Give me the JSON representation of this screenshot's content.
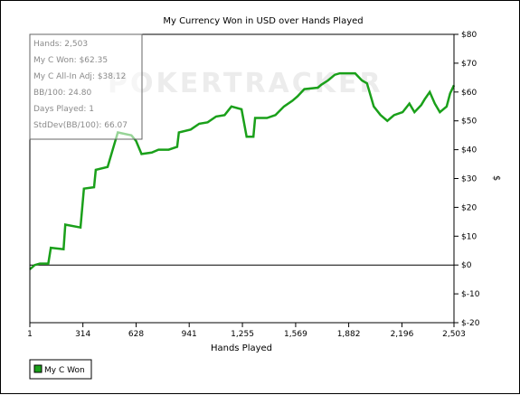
{
  "chart_data": {
    "type": "line",
    "title": "My Currency Won in USD over Hands Played",
    "xlabel": "Hands Played",
    "ylabel": "$",
    "x_ticks": [
      1,
      314,
      628,
      941,
      1255,
      1569,
      1882,
      2196,
      2503
    ],
    "x_tick_labels": [
      "1",
      "314",
      "628",
      "941",
      "1,255",
      "1,569",
      "1,882",
      "2,196",
      "2,503"
    ],
    "xlim": [
      1,
      2503
    ],
    "ylim": [
      -20,
      80
    ],
    "y_ticks": [
      -20,
      -10,
      0,
      10,
      20,
      30,
      40,
      50,
      60,
      70,
      80
    ],
    "y_tick_labels": [
      "$-20",
      "$-10",
      "$0",
      "$10",
      "$20",
      "$30",
      "$40",
      "$50",
      "$60",
      "$70",
      "$80"
    ],
    "grid": false,
    "legend_placement": "bottom-left",
    "watermark": "POKERTRACKER",
    "series": [
      {
        "name": "My C Won",
        "color": "#1aa01a",
        "points": [
          [
            1,
            -1.5
          ],
          [
            30,
            0
          ],
          [
            60,
            0.5
          ],
          [
            110,
            0.5
          ],
          [
            125,
            6
          ],
          [
            200,
            5.5
          ],
          [
            210,
            14
          ],
          [
            300,
            13
          ],
          [
            320,
            26.5
          ],
          [
            380,
            27
          ],
          [
            390,
            33
          ],
          [
            460,
            34
          ],
          [
            500,
            42
          ],
          [
            520,
            46
          ],
          [
            600,
            45
          ],
          [
            628,
            43
          ],
          [
            660,
            38.5
          ],
          [
            720,
            39
          ],
          [
            760,
            40
          ],
          [
            820,
            40
          ],
          [
            870,
            41
          ],
          [
            880,
            46
          ],
          [
            950,
            47
          ],
          [
            1000,
            49
          ],
          [
            1050,
            49.5
          ],
          [
            1100,
            51.5
          ],
          [
            1150,
            52
          ],
          [
            1190,
            55
          ],
          [
            1250,
            54
          ],
          [
            1280,
            44.5
          ],
          [
            1320,
            44.5
          ],
          [
            1330,
            51
          ],
          [
            1400,
            51
          ],
          [
            1450,
            52
          ],
          [
            1500,
            55
          ],
          [
            1550,
            57
          ],
          [
            1580,
            58.5
          ],
          [
            1620,
            61
          ],
          [
            1700,
            61.5
          ],
          [
            1720,
            62.5
          ],
          [
            1760,
            64
          ],
          [
            1800,
            66
          ],
          [
            1830,
            66.5
          ],
          [
            1880,
            66.5
          ],
          [
            1920,
            66.5
          ],
          [
            1960,
            64
          ],
          [
            1990,
            63
          ],
          [
            2030,
            55
          ],
          [
            2070,
            52
          ],
          [
            2110,
            50
          ],
          [
            2150,
            52
          ],
          [
            2200,
            53
          ],
          [
            2240,
            56
          ],
          [
            2270,
            53
          ],
          [
            2310,
            55.5
          ],
          [
            2330,
            57.5
          ],
          [
            2360,
            60
          ],
          [
            2390,
            56
          ],
          [
            2420,
            53
          ],
          [
            2460,
            55
          ],
          [
            2480,
            59.5
          ],
          [
            2503,
            62.35
          ]
        ]
      }
    ]
  },
  "stats_box": {
    "hands": "Hands: 2,503",
    "won": "My C Won: $62.35",
    "allin": "My C All-In Adj: $38.12",
    "bb100": "BB/100: 24.80",
    "days": "Days Played: 1",
    "stddev": "StdDev(BB/100): 66.07"
  }
}
